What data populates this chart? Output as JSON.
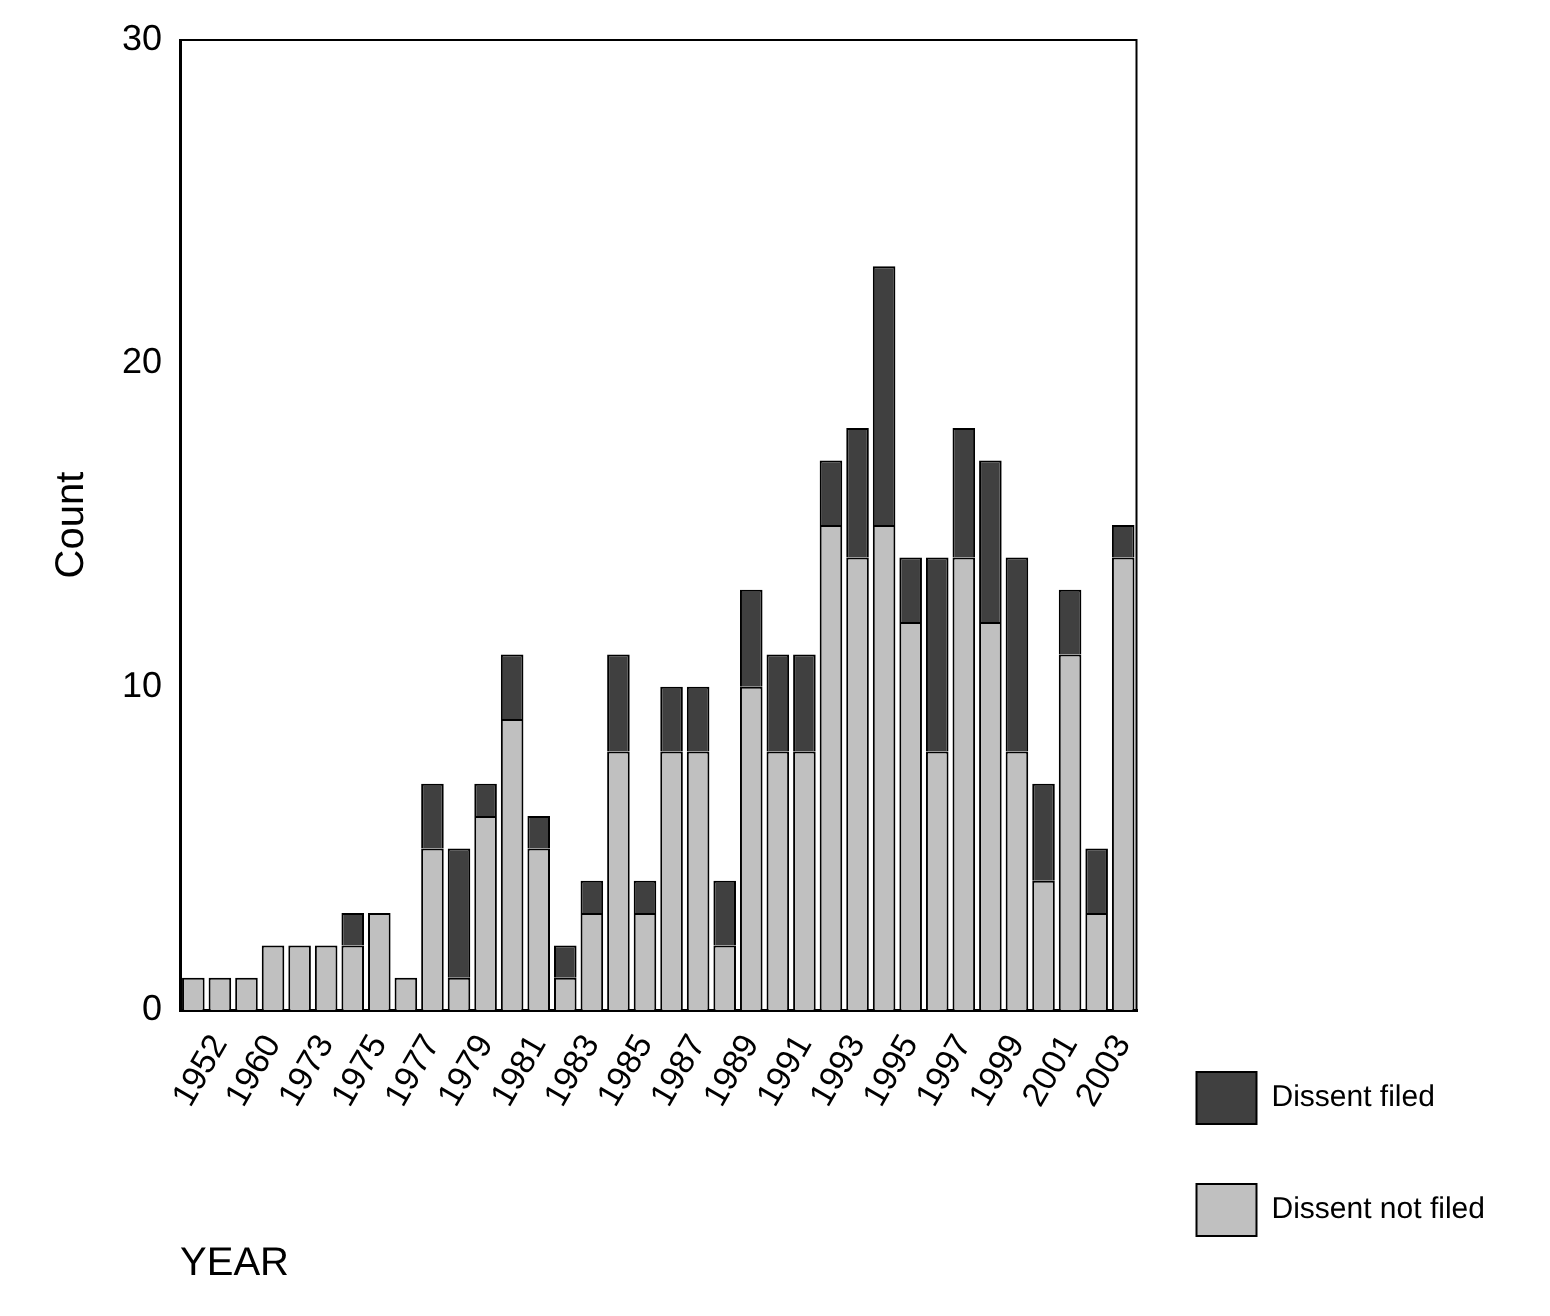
{
  "chart_data": {
    "type": "bar",
    "stacked": true,
    "xlabel": "YEAR",
    "ylabel": "Count",
    "categories": [
      null,
      "1952",
      null,
      "1960",
      null,
      "1973",
      null,
      "1975",
      null,
      "1977",
      null,
      "1979",
      null,
      "1981",
      null,
      "1983",
      null,
      "1985",
      null,
      "1987",
      null,
      "1989",
      null,
      "1991",
      null,
      "1993",
      null,
      "1995",
      null,
      "1997",
      null,
      "1999",
      null,
      "2001",
      null,
      "2003"
    ],
    "series": [
      {
        "name": "Dissent not filed",
        "color": "#c0c0c0",
        "values": [
          1,
          1,
          1,
          2,
          2,
          2,
          2,
          3,
          1,
          5,
          1,
          6,
          9,
          5,
          1,
          3,
          8,
          3,
          8,
          8,
          2,
          10,
          8,
          8,
          15,
          14,
          15,
          12,
          8,
          14,
          12,
          8,
          4,
          11,
          3,
          14
        ]
      },
      {
        "name": "Dissent filed",
        "color": "#404040",
        "values": [
          0,
          0,
          0,
          0,
          0,
          0,
          1,
          0,
          0,
          2,
          4,
          1,
          2,
          1,
          1,
          1,
          3,
          1,
          2,
          2,
          2,
          3,
          3,
          3,
          2,
          4,
          8,
          2,
          6,
          4,
          5,
          6,
          3,
          2,
          2,
          1
        ]
      }
    ],
    "ylim": [
      0,
      30
    ],
    "yticks": [
      0,
      10,
      20,
      30
    ],
    "grid": false,
    "legend": "right"
  }
}
